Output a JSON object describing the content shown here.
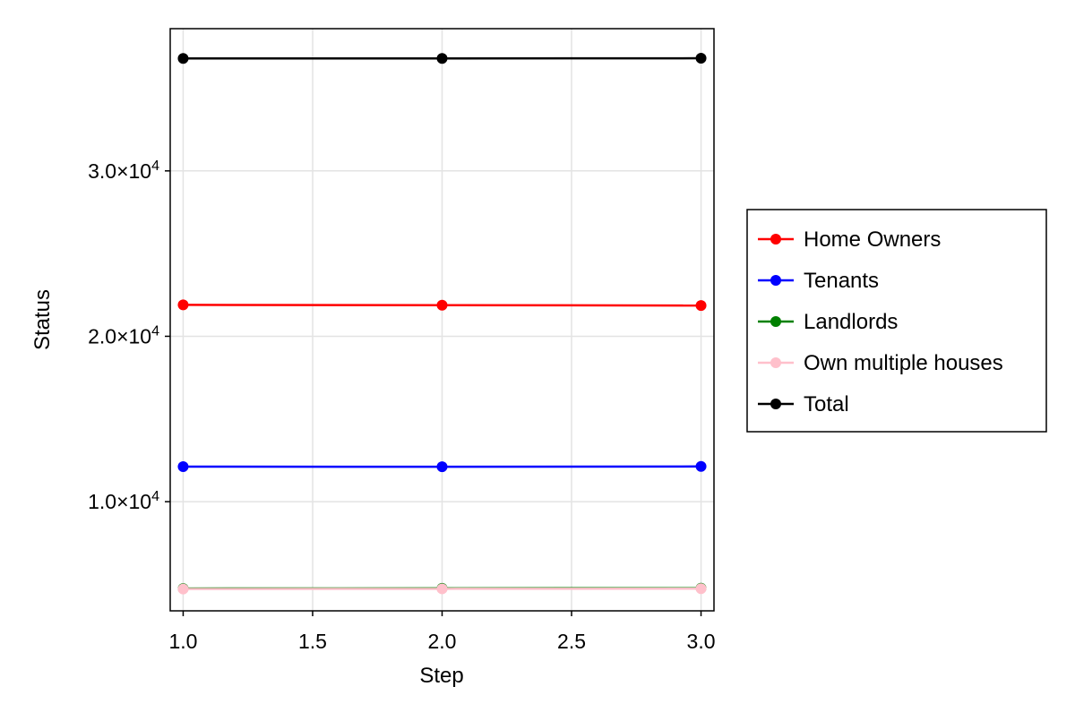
{
  "chart_data": {
    "type": "line",
    "title": "",
    "xlabel": "Step",
    "ylabel": "Status",
    "x": [
      1.0,
      2.0,
      3.0
    ],
    "xlim": [
      0.95,
      3.05
    ],
    "ylim": [
      3400,
      38600
    ],
    "x_ticks": [
      1.0,
      1.5,
      2.0,
      2.5,
      3.0
    ],
    "x_tick_labels": [
      "1.0",
      "1.5",
      "2.0",
      "2.5",
      "3.0"
    ],
    "y_ticks": [
      10000,
      20000,
      30000
    ],
    "y_tick_mantissas": [
      "1.0",
      "2.0",
      "3.0"
    ],
    "y_tick_exponent_base": "×10",
    "y_tick_exponent": "4",
    "grid": true,
    "legend_position": "right",
    "series": [
      {
        "name": "Home Owners",
        "color": "#ff0000",
        "values": [
          21900,
          21880,
          21860
        ]
      },
      {
        "name": "Tenants",
        "color": "#0000ff",
        "values": [
          12120,
          12110,
          12130
        ]
      },
      {
        "name": "Landlords",
        "color": "#008000",
        "values": [
          4750,
          4760,
          4770
        ]
      },
      {
        "name": "Own multiple houses",
        "color": "#ffc0cb",
        "values": [
          4720,
          4730,
          4740
        ]
      },
      {
        "name": "Total",
        "color": "#000000",
        "values": [
          36800,
          36800,
          36810
        ]
      }
    ]
  }
}
